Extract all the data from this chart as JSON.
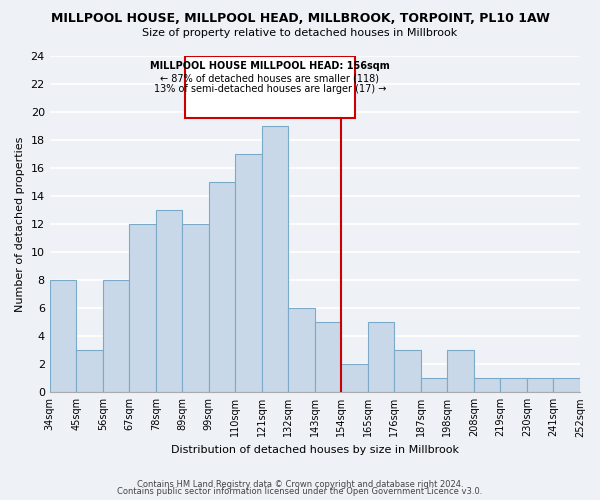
{
  "title": "MILLPOOL HOUSE, MILLPOOL HEAD, MILLBROOK, TORPOINT, PL10 1AW",
  "subtitle": "Size of property relative to detached houses in Millbrook",
  "xlabel": "Distribution of detached houses by size in Millbrook",
  "ylabel": "Number of detached properties",
  "counts": [
    8,
    3,
    8,
    12,
    13,
    12,
    15,
    17,
    19,
    6,
    5,
    2,
    5,
    3,
    1,
    3,
    1,
    1,
    1,
    1
  ],
  "tick_labels": [
    "34sqm",
    "45sqm",
    "56sqm",
    "67sqm",
    "78sqm",
    "89sqm",
    "99sqm",
    "110sqm",
    "121sqm",
    "132sqm",
    "143sqm",
    "154sqm",
    "165sqm",
    "176sqm",
    "187sqm",
    "198sqm",
    "208sqm",
    "219sqm",
    "230sqm",
    "241sqm",
    "252sqm"
  ],
  "bar_color": "#c8d8e8",
  "bar_edge_color": "#7baac8",
  "marker_idx": 11,
  "marker_color": "#cc0000",
  "ylim": [
    0,
    24
  ],
  "yticks": [
    0,
    2,
    4,
    6,
    8,
    10,
    12,
    14,
    16,
    18,
    20,
    22,
    24
  ],
  "annotation_line1": "MILLPOOL HOUSE MILLPOOL HEAD: 156sqm",
  "annotation_line2": "← 87% of detached houses are smaller (118)",
  "annotation_line3": "13% of semi-detached houses are larger (17) →",
  "annotation_box_color": "#ffffff",
  "annotation_box_edge": "#cc0000",
  "footer1": "Contains HM Land Registry data © Crown copyright and database right 2024.",
  "footer2": "Contains public sector information licensed under the Open Government Licence v3.0.",
  "background_color": "#eef2f7",
  "grid_color": "#ffffff"
}
